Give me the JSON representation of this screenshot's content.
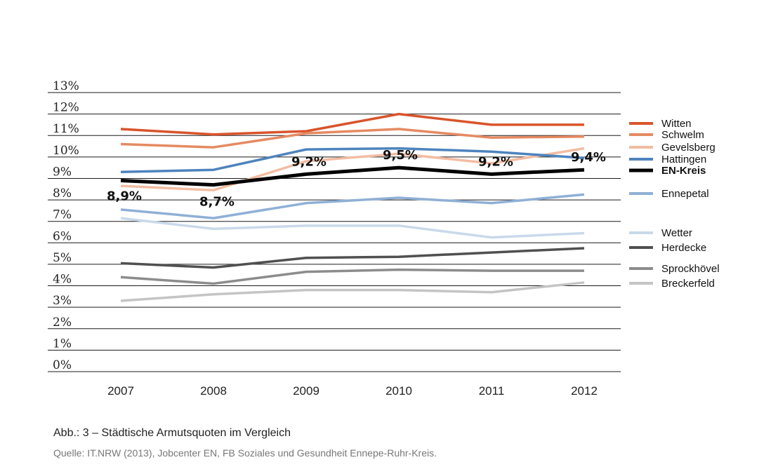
{
  "chart_data": {
    "type": "line",
    "title": "",
    "xlabel": "",
    "ylabel": "",
    "categories": [
      "2007",
      "2008",
      "2009",
      "2010",
      "2011",
      "2012"
    ],
    "y_ticks": [
      "0%",
      "1%",
      "2%",
      "3%",
      "4%",
      "5%",
      "6%",
      "7%",
      "8%",
      "9%",
      "10%",
      "11%",
      "12%",
      "13%"
    ],
    "ylim": [
      0,
      13
    ],
    "grid": "horizontal",
    "legend_position": "right",
    "series": [
      {
        "name": "Witten",
        "values": [
          11.3,
          11.05,
          11.2,
          12.0,
          11.5,
          11.5
        ],
        "color": "#d9542b",
        "width": 3.5,
        "bold": false
      },
      {
        "name": "Schwelm",
        "values": [
          10.6,
          10.45,
          11.1,
          11.3,
          10.9,
          10.95
        ],
        "color": "#e58a62",
        "width": 3.5,
        "bold": false
      },
      {
        "name": "Gevelsberg",
        "values": [
          8.65,
          8.45,
          9.8,
          10.15,
          9.7,
          10.4
        ],
        "color": "#f2bda2",
        "width": 3.5,
        "bold": false
      },
      {
        "name": "Hattingen",
        "values": [
          9.3,
          9.4,
          10.35,
          10.4,
          10.25,
          9.95
        ],
        "color": "#4e83bd",
        "width": 3.5,
        "bold": false
      },
      {
        "name": "EN-Kreis",
        "values": [
          8.9,
          8.7,
          9.2,
          9.5,
          9.2,
          9.4
        ],
        "color": "#000000",
        "width": 5,
        "bold": true
      },
      {
        "name": "Ennepetal",
        "values": [
          7.55,
          7.15,
          7.85,
          8.1,
          7.85,
          8.25
        ],
        "color": "#8fb0d6",
        "width": 3.5,
        "bold": false
      },
      {
        "name": "Wetter",
        "values": [
          7.15,
          6.65,
          6.8,
          6.8,
          6.25,
          6.45
        ],
        "color": "#c9d9ea",
        "width": 3.5,
        "bold": false
      },
      {
        "name": "Herdecke",
        "values": [
          5.05,
          4.85,
          5.3,
          5.35,
          5.55,
          5.75
        ],
        "color": "#505050",
        "width": 3.5,
        "bold": false
      },
      {
        "name": "Sprockhövel",
        "values": [
          4.4,
          4.1,
          4.65,
          4.75,
          4.7,
          4.7
        ],
        "color": "#8c8c8c",
        "width": 3.5,
        "bold": false
      },
      {
        "name": "Breckerfeld",
        "values": [
          3.3,
          3.6,
          3.8,
          3.8,
          3.7,
          4.15
        ],
        "color": "#c4c4c4",
        "width": 3.5,
        "bold": false
      }
    ],
    "data_labels": {
      "series": "EN-Kreis",
      "labels": [
        "8,9%",
        "8,7%",
        "9,2%",
        "9,5%",
        "9,2%",
        "9,4%"
      ]
    }
  },
  "caption": "Abb.: 3 – Städtische Armutsquoten im Vergleich",
  "source": "Quelle: IT.NRW (2013), Jobcenter EN, FB Soziales und Gesundheit Ennepe-Ruhr-Kreis."
}
